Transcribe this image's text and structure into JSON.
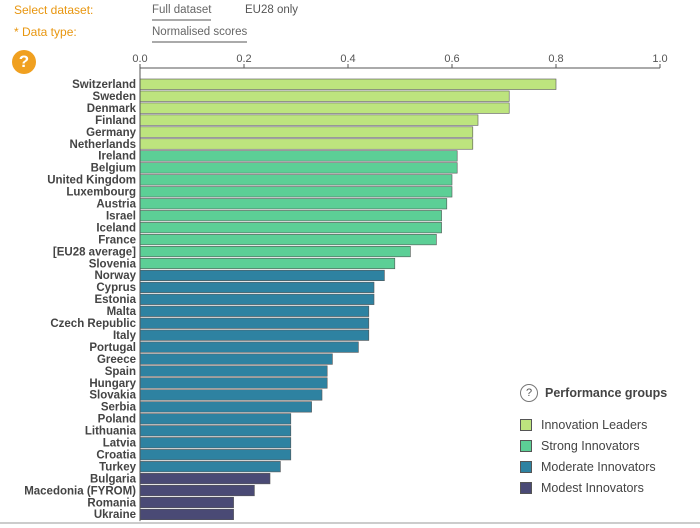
{
  "controls": {
    "dataset_label": "Select dataset:",
    "dataset_options": [
      "Full dataset",
      "EU28 only"
    ],
    "datatype_label": "* Data type:",
    "datatype_value": "Normalised scores",
    "help_symbol": "?"
  },
  "colors": {
    "Innovation Leaders": "#bde47e",
    "Strong Innovators": "#5ccf96",
    "Moderate Innovators": "#2e82a1",
    "Modest Innovators": "#4a4a75",
    "accent": "#f0a020"
  },
  "legend": {
    "title": "Performance groups",
    "help_symbol": "?",
    "items": [
      "Innovation Leaders",
      "Strong Innovators",
      "Moderate Innovators",
      "Modest Innovators"
    ]
  },
  "chart_data": {
    "type": "bar",
    "orientation": "horizontal",
    "xlim": [
      0,
      1.0
    ],
    "xticks": [
      "0.0",
      "0.2",
      "0.4",
      "0.6",
      "0.8",
      "1.0"
    ],
    "grid": false,
    "legend_position": "bottom-right",
    "categories": [
      "Switzerland",
      "Sweden",
      "Denmark",
      "Finland",
      "Germany",
      "Netherlands",
      "Ireland",
      "Belgium",
      "United Kingdom",
      "Luxembourg",
      "Austria",
      "Israel",
      "Iceland",
      "France",
      "[EU28 average]",
      "Slovenia",
      "Norway",
      "Cyprus",
      "Estonia",
      "Malta",
      "Czech Republic",
      "Italy",
      "Portugal",
      "Greece",
      "Spain",
      "Hungary",
      "Slovakia",
      "Serbia",
      "Poland",
      "Lithuania",
      "Latvia",
      "Croatia",
      "Turkey",
      "Bulgaria",
      "Macedonia (FYROM)",
      "Romania",
      "Ukraine"
    ],
    "values": [
      0.8,
      0.71,
      0.71,
      0.65,
      0.64,
      0.64,
      0.61,
      0.61,
      0.6,
      0.6,
      0.59,
      0.58,
      0.58,
      0.57,
      0.52,
      0.49,
      0.47,
      0.45,
      0.45,
      0.44,
      0.44,
      0.44,
      0.42,
      0.37,
      0.36,
      0.36,
      0.35,
      0.33,
      0.29,
      0.29,
      0.29,
      0.29,
      0.27,
      0.25,
      0.22,
      0.18,
      0.18
    ],
    "groups": [
      "Innovation Leaders",
      "Innovation Leaders",
      "Innovation Leaders",
      "Innovation Leaders",
      "Innovation Leaders",
      "Innovation Leaders",
      "Strong Innovators",
      "Strong Innovators",
      "Strong Innovators",
      "Strong Innovators",
      "Strong Innovators",
      "Strong Innovators",
      "Strong Innovators",
      "Strong Innovators",
      "Strong Innovators",
      "Strong Innovators",
      "Moderate Innovators",
      "Moderate Innovators",
      "Moderate Innovators",
      "Moderate Innovators",
      "Moderate Innovators",
      "Moderate Innovators",
      "Moderate Innovators",
      "Moderate Innovators",
      "Moderate Innovators",
      "Moderate Innovators",
      "Moderate Innovators",
      "Moderate Innovators",
      "Moderate Innovators",
      "Moderate Innovators",
      "Moderate Innovators",
      "Moderate Innovators",
      "Moderate Innovators",
      "Modest Innovators",
      "Modest Innovators",
      "Modest Innovators",
      "Modest Innovators"
    ]
  }
}
